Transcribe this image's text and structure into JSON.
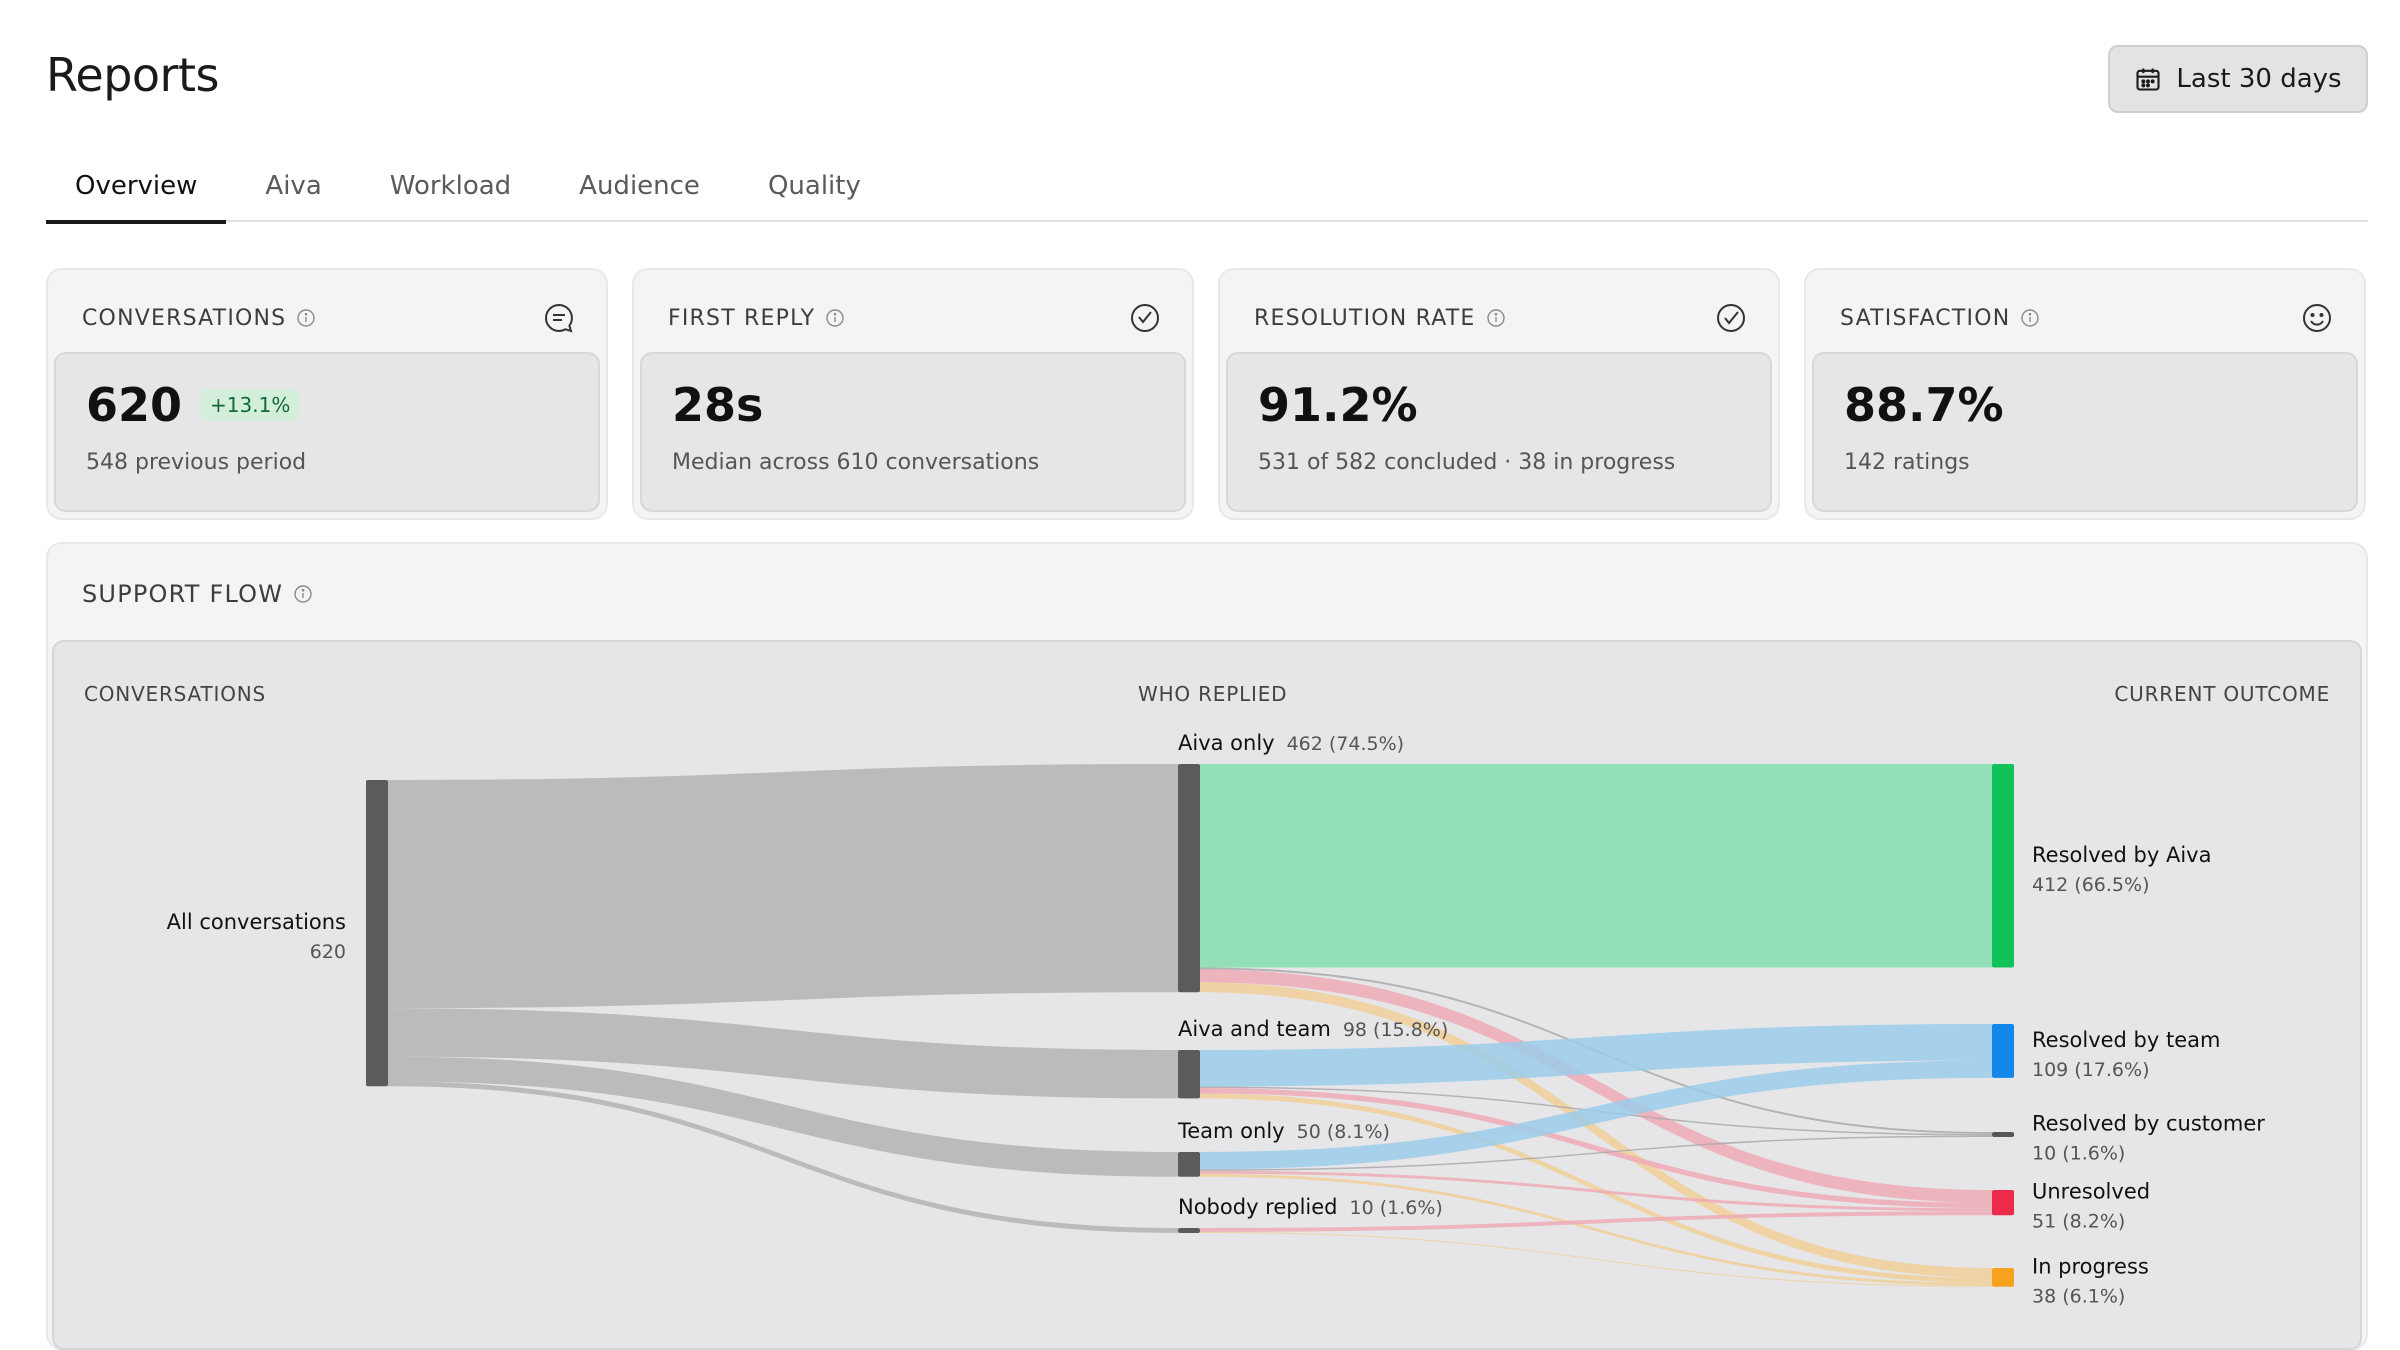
{
  "page": {
    "title": "Reports"
  },
  "date_range": {
    "label": "Last 30 days",
    "icon": "calendar-icon"
  },
  "tabs": [
    {
      "label": "Overview",
      "active": true
    },
    {
      "label": "Aiva"
    },
    {
      "label": "Workload"
    },
    {
      "label": "Audience"
    },
    {
      "label": "Quality"
    }
  ],
  "metrics": [
    {
      "title": "CONVERSATIONS",
      "icon": "chat-bubble-icon",
      "value": "620",
      "delta": "+13.1%",
      "sub": "548 previous period"
    },
    {
      "title": "FIRST  REPLY",
      "icon": "clock-check-icon",
      "value": "28s",
      "sub": "Median across 610 conversations"
    },
    {
      "title": "RESOLUTION  RATE",
      "icon": "circle-check-icon",
      "value": "91.2%",
      "sub": "531 of 582 concluded · 38 in progress"
    },
    {
      "title": "SATISFACTION",
      "icon": "smiley-icon",
      "value": "88.7%",
      "sub": "142 ratings"
    }
  ],
  "support_flow": {
    "title": "SUPPORT  FLOW",
    "columns": {
      "left": "CONVERSATIONS",
      "middle": "WHO REPLIED",
      "right": "CURRENT OUTCOME"
    },
    "source": {
      "label": "All conversations",
      "value": "620"
    },
    "repliers": [
      {
        "id": "aiva",
        "label": "Aiva only",
        "value": 462,
        "detail": "462 (74.5%)"
      },
      {
        "id": "both",
        "label": "Aiva and team",
        "value": 98,
        "detail": "98 (15.8%)"
      },
      {
        "id": "team",
        "label": "Team only",
        "value": 50,
        "detail": "50 (8.1%)"
      },
      {
        "id": "none",
        "label": "Nobody replied",
        "value": 10,
        "detail": "10 (1.6%)"
      }
    ],
    "outcomes": [
      {
        "id": "aiva_res",
        "label": "Resolved by Aiva",
        "value": 412,
        "detail": "412 (66.5%)",
        "color": "#10c25a",
        "flow_color": "#93dfb7"
      },
      {
        "id": "team_res",
        "label": "Resolved by team",
        "value": 109,
        "detail": "109 (17.6%)",
        "color": "#1488ea",
        "flow_color": "#9bcbea"
      },
      {
        "id": "cust_res",
        "label": "Resolved by customer",
        "value": 10,
        "detail": "10 (1.6%)",
        "color": "#555555",
        "flow_color": "#a9a9ab"
      },
      {
        "id": "unres",
        "label": "Unresolved",
        "value": 51,
        "detail": "51 (8.2%)",
        "color": "#ee2a4a",
        "flow_color": "#eeaab6"
      },
      {
        "id": "prog",
        "label": "In progress",
        "value": 38,
        "detail": "38 (6.1%)",
        "color": "#f7a21c",
        "flow_color": "#f0cf98"
      }
    ],
    "flows": [
      {
        "from": "aiva",
        "to": "aiva_res",
        "value": 412
      },
      {
        "from": "aiva",
        "to": "cust_res",
        "value": 4
      },
      {
        "from": "aiva",
        "to": "unres",
        "value": 26
      },
      {
        "from": "aiva",
        "to": "prog",
        "value": 20
      },
      {
        "from": "both",
        "to": "team_res",
        "value": 74
      },
      {
        "from": "both",
        "to": "cust_res",
        "value": 3
      },
      {
        "from": "both",
        "to": "unres",
        "value": 11
      },
      {
        "from": "both",
        "to": "prog",
        "value": 10
      },
      {
        "from": "team",
        "to": "team_res",
        "value": 35
      },
      {
        "from": "team",
        "to": "cust_res",
        "value": 3
      },
      {
        "from": "team",
        "to": "unres",
        "value": 6
      },
      {
        "from": "team",
        "to": "prog",
        "value": 6
      },
      {
        "from": "none",
        "to": "unres",
        "value": 8
      },
      {
        "from": "none",
        "to": "prog",
        "value": 2
      }
    ],
    "colors": {
      "node_dark": "#5b5b5b",
      "flow_gray": "#b6b6b8"
    }
  }
}
